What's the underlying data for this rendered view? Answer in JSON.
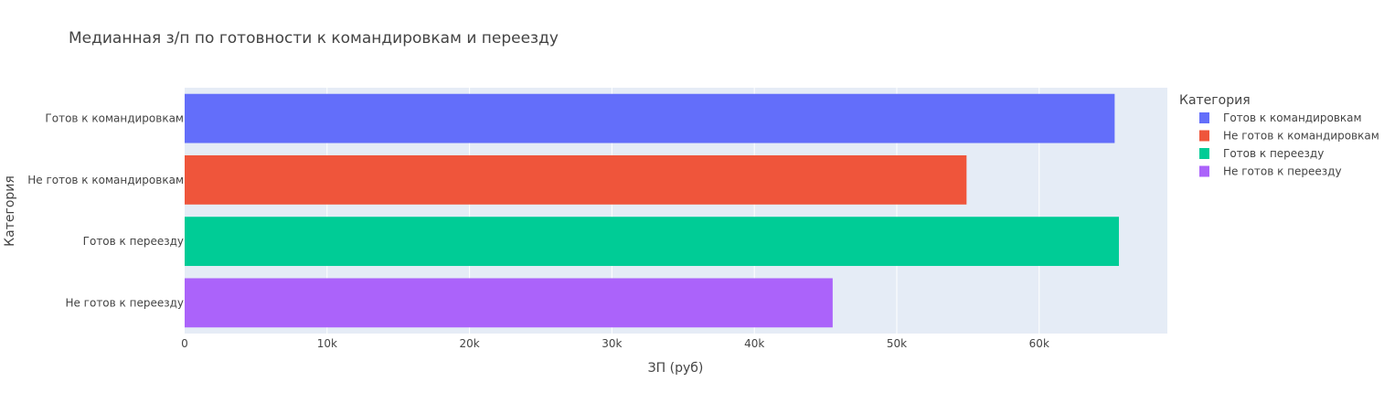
{
  "chart_data": {
    "type": "bar",
    "orientation": "horizontal",
    "title": "Медианная з/п по готовности к командировкам и переезду",
    "xlabel": "ЗП (руб)",
    "ylabel": "Категория",
    "xlim": [
      0,
      69000
    ],
    "x_ticks": [
      0,
      10000,
      20000,
      30000,
      40000,
      50000,
      60000
    ],
    "x_tick_labels": [
      "0",
      "10k",
      "20k",
      "30k",
      "40k",
      "50k",
      "60k"
    ],
    "categories": [
      "Готов к командировкам",
      "Не готов к командировкам",
      "Готов к переезду",
      "Не готов к переезду"
    ],
    "values": [
      65300,
      54900,
      65600,
      45500
    ],
    "colors": [
      "#636efa",
      "#ef553b",
      "#00cc96",
      "#ab63fa"
    ],
    "grid": true,
    "legend": {
      "title": "Категория",
      "placement": "right",
      "entries": [
        "Готов к командировкам",
        "Не готов к командировкам",
        "Готов к переезду",
        "Не готов к переезду"
      ]
    },
    "plot_background": "#e5ecf6"
  }
}
